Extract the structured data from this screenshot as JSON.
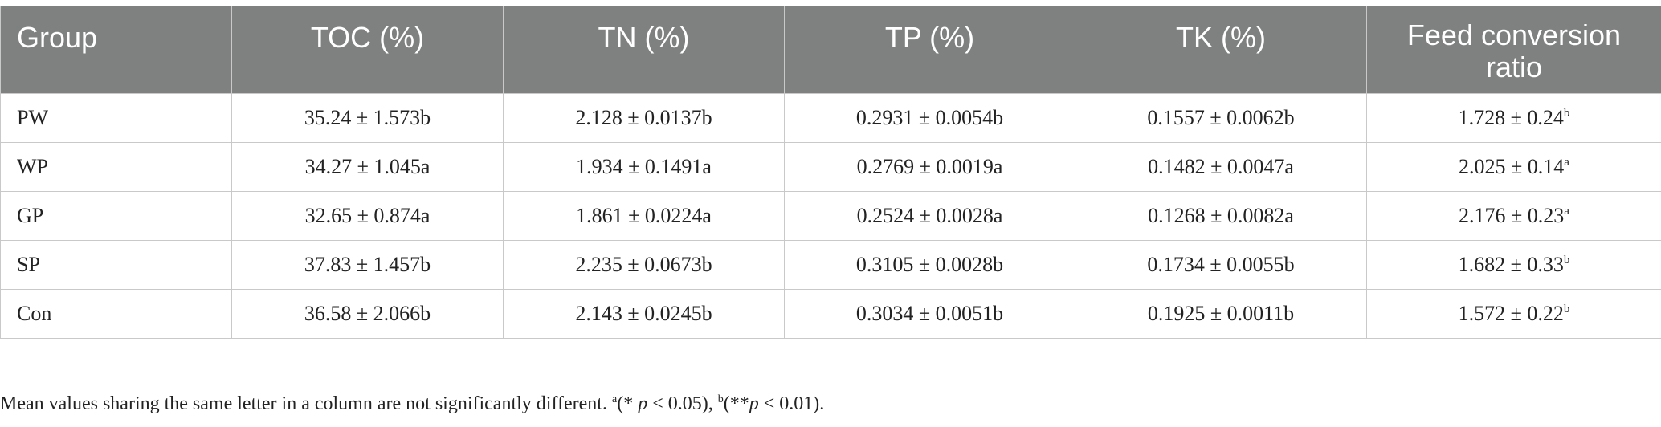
{
  "table": {
    "headers": [
      "Group",
      "TOC (%)",
      "TN (%)",
      "TP (%)",
      "TK (%)",
      "Feed conversion ratio"
    ],
    "rows": [
      {
        "group": "PW",
        "toc": "35.24 ± 1.573b",
        "tn": "2.128 ± 0.0137b",
        "tp": "0.2931 ± 0.0054b",
        "tk": "0.1557 ± 0.0062b",
        "fcr": "1.728 ± 0.24",
        "fcr_sup": "b"
      },
      {
        "group": "WP",
        "toc": "34.27 ± 1.045a",
        "tn": "1.934 ± 0.1491a",
        "tp": "0.2769 ± 0.0019a",
        "tk": "0.1482 ± 0.0047a",
        "fcr": "2.025 ± 0.14",
        "fcr_sup": "a"
      },
      {
        "group": "GP",
        "toc": "32.65 ± 0.874a",
        "tn": "1.861 ± 0.0224a",
        "tp": "0.2524 ± 0.0028a",
        "tk": "0.1268 ± 0.0082a",
        "fcr": "2.176 ± 0.23",
        "fcr_sup": "a"
      },
      {
        "group": "SP",
        "toc": "37.83 ± 1.457b",
        "tn": "2.235 ± 0.0673b",
        "tp": "0.3105 ± 0.0028b",
        "tk": "0.1734 ± 0.0055b",
        "fcr": "1.682 ± 0.33",
        "fcr_sup": "b"
      },
      {
        "group": "Con",
        "toc": "36.58 ± 2.066b",
        "tn": "2.143 ± 0.0245b",
        "tp": "0.3034 ± 0.0051b",
        "tk": "0.1925 ± 0.0011b",
        "fcr": "1.572 ± 0.22",
        "fcr_sup": "b"
      }
    ]
  },
  "footnote": {
    "text": "Mean values sharing the same letter in a column are not significantly different. ",
    "sup_a": "a",
    "part_a": "(* ",
    "p1": "p",
    "part_a_end": " < 0.05), ",
    "sup_b": "b",
    "part_b": "(**",
    "p2": "p",
    "part_b_end": " < 0.01)."
  }
}
